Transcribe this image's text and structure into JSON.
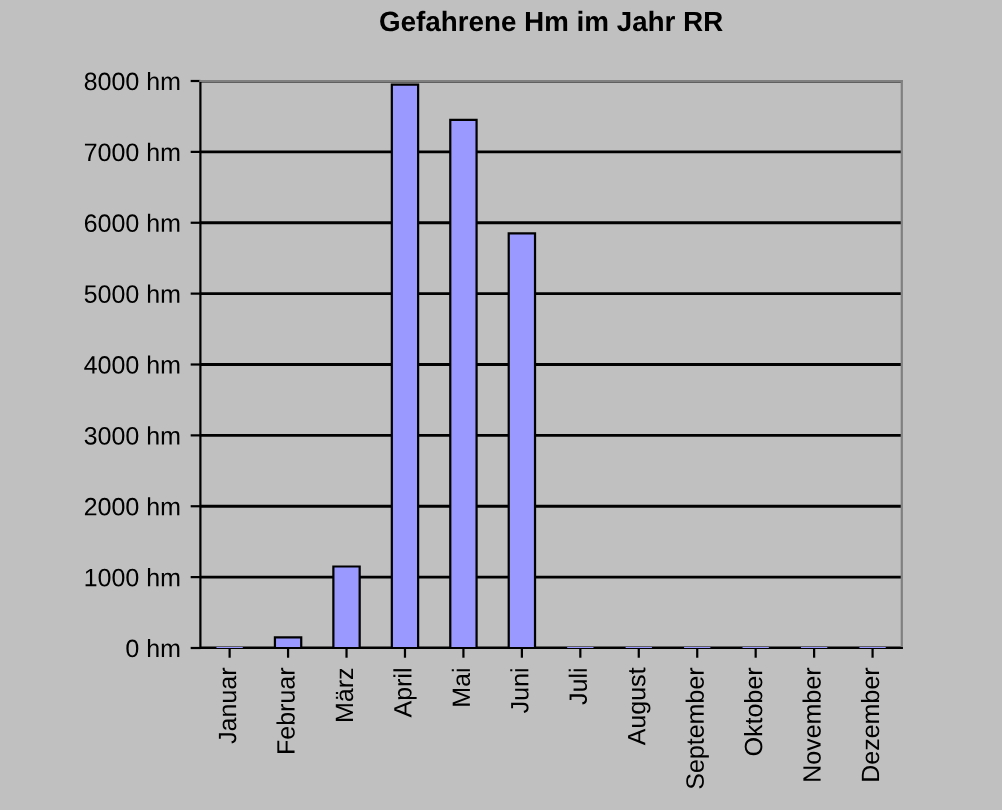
{
  "chart_data": {
    "type": "bar",
    "title": "Gefahrene Hm im Jahr RR",
    "categories": [
      "Januar",
      "Februar",
      "März",
      "April",
      "Mai",
      "Juni",
      "Juli",
      "August",
      "September",
      "Oktober",
      "November",
      "Dezember"
    ],
    "values": [
      0,
      150,
      1150,
      7950,
      7450,
      5850,
      0,
      0,
      0,
      0,
      0,
      0
    ],
    "color": "#9999ff",
    "ylim": [
      0,
      8000
    ],
    "yticks": [
      {
        "value": 0,
        "label": "0 hm"
      },
      {
        "value": 1000,
        "label": "1000 hm"
      },
      {
        "value": 2000,
        "label": "2000 hm"
      },
      {
        "value": 3000,
        "label": "3000 hm"
      },
      {
        "value": 4000,
        "label": "4000 hm"
      },
      {
        "value": 5000,
        "label": "5000 hm"
      },
      {
        "value": 6000,
        "label": "6000 hm"
      },
      {
        "value": 7000,
        "label": "7000 hm"
      },
      {
        "value": 8000,
        "label": "8000 hm"
      }
    ],
    "grid": "y",
    "legend": false
  }
}
